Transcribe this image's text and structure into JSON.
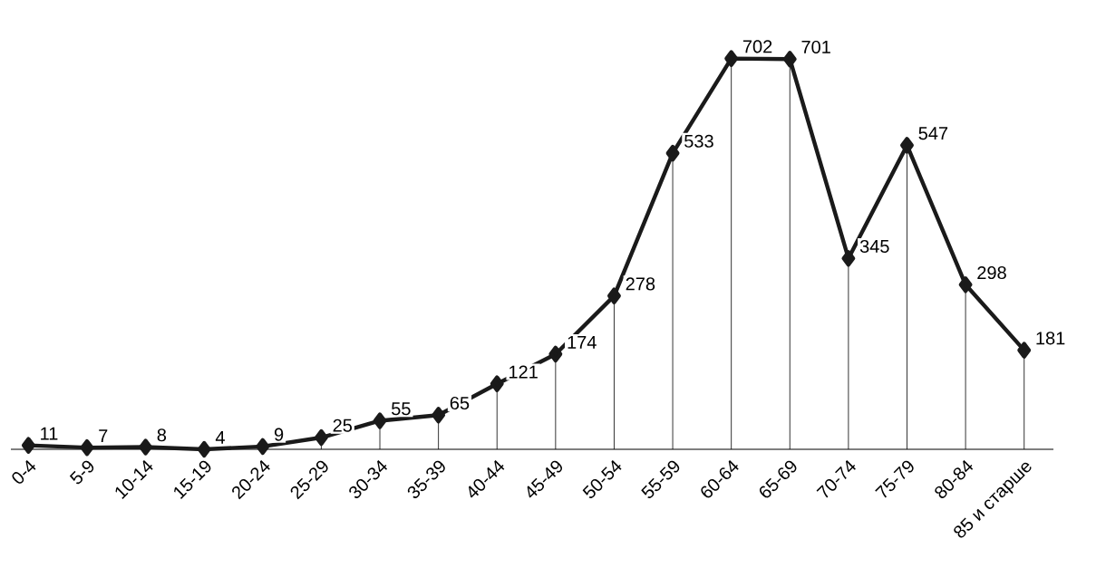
{
  "chart_data": {
    "type": "line",
    "categories": [
      "0-4",
      "5-9",
      "10-14",
      "15-19",
      "20-24",
      "25-29",
      "30-34",
      "35-39",
      "40-44",
      "45-49",
      "50-54",
      "55-59",
      "60-64",
      "65-69",
      "70-74",
      "75-79",
      "80-84",
      "85 и старше"
    ],
    "values": [
      11,
      7,
      8,
      4,
      9,
      25,
      55,
      65,
      121,
      174,
      278,
      533,
      702,
      701,
      345,
      547,
      298,
      181
    ],
    "color": "#1a1a1a",
    "marker": "diamond",
    "line_style": "solid",
    "data_labels": true,
    "tick_labels": "x",
    "grid": "x"
  }
}
